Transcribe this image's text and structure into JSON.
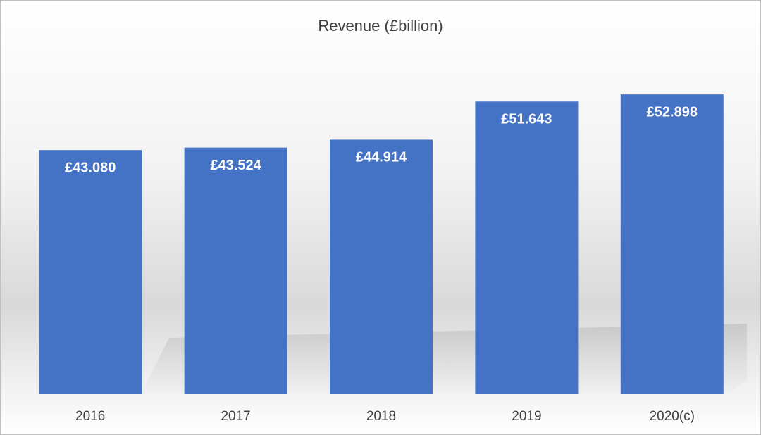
{
  "chart_data": {
    "type": "bar",
    "title": "Revenue (£billion)",
    "categories": [
      "2016",
      "2017",
      "2018",
      "2019",
      "2020(c)"
    ],
    "values": [
      43.08,
      43.524,
      44.914,
      51.643,
      52.898
    ],
    "value_labels": [
      "£43.080",
      "£43.524",
      "£44.914",
      "£51.643",
      "£52.898"
    ],
    "color": "#4472c4",
    "ylim": [
      0,
      60
    ]
  }
}
